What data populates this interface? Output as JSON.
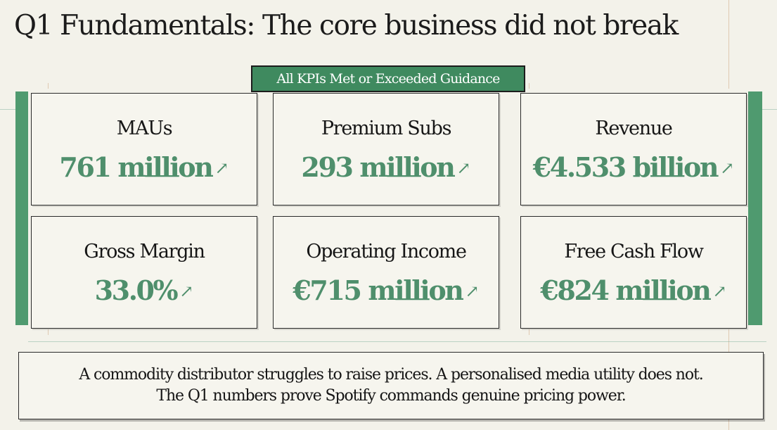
{
  "title": "Q1 Fundamentals: The core business did not break",
  "badge": "All KPIs Met or Exceeded Guidance",
  "kpis": [
    {
      "label": "MAUs",
      "value": "761 million",
      "trend_icon": "arrow-up-right-icon"
    },
    {
      "label": "Premium Subs",
      "value": "293 million",
      "trend_icon": "arrow-up-right-icon"
    },
    {
      "label": "Revenue",
      "value": "€4.533 billion",
      "trend_icon": "arrow-up-right-icon"
    },
    {
      "label": "Gross Margin",
      "value": "33.0%",
      "trend_icon": "arrow-up-right-icon"
    },
    {
      "label": "Operating Income",
      "value": "€715 million",
      "trend_icon": "arrow-up-right-icon"
    },
    {
      "label": "Free Cash Flow",
      "value": "€824 million",
      "trend_icon": "arrow-up-right-icon"
    }
  ],
  "footer": {
    "line1": "A commodity distributor struggles to raise prices. A personalised media utility does not.",
    "line2": "The Q1 numbers prove Spotify commands genuine pricing power."
  },
  "colors": {
    "accent": "#4f9a6f",
    "value_text": "#4f8f6c",
    "background": "#f3f2ea"
  }
}
